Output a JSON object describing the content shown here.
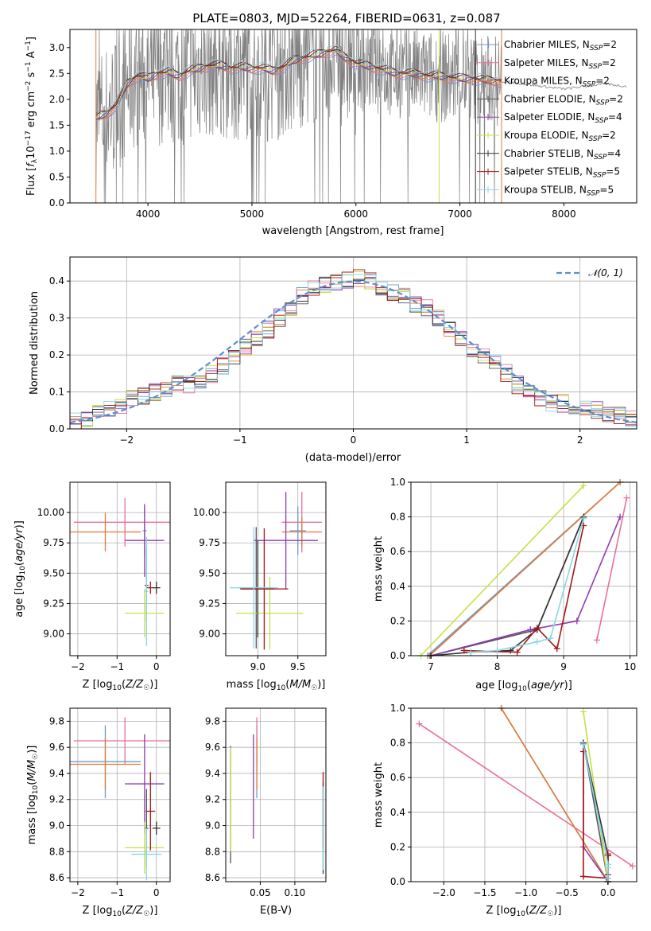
{
  "figure": {
    "title": "PLATE=0803, MJD=52264, FIBERID=0631, z=0.087"
  },
  "colors": {
    "Chabrier MILES": "#6b9bd1",
    "Salpeter MILES": "#e8709a",
    "Kroupa MILES": "#e07b39",
    "Chabrier ELODIE": "#555555",
    "Salpeter ELODIE": "#8e3bb0",
    "Kroupa ELODIE": "#c6e04a",
    "Chabrier STELIB": "#333333",
    "Salpeter STELIB": "#a81414",
    "Kroupa STELIB": "#85d8e6",
    "data": "#808080",
    "normal": "#5b8fd6"
  },
  "chart_data": [
    {
      "id": "spectrum",
      "type": "line",
      "title": "PLATE=0803, MJD=52264, FIBERID=0631, z=0.087",
      "xlabel": "wavelength [Angstrom, rest frame]",
      "ylabel": "Flux [f_λ 10^-17 erg cm^-2 s^-1 A^-1]",
      "xlim": [
        3250,
        8700
      ],
      "ylim": [
        0,
        3.35
      ],
      "xticks": [
        4000,
        5000,
        6000,
        7000,
        8000
      ],
      "yticks": [
        0.0,
        0.5,
        1.0,
        1.5,
        2.0,
        2.5,
        3.0
      ],
      "legend_position": "right",
      "legend": [
        "Chabrier MILES, N_SSP=2",
        "Salpeter MILES, N_SSP=2",
        "Kroupa MILES, N_SSP=2",
        "Chabrier ELODIE, N_SSP=2",
        "Salpeter ELODIE, N_SSP=4",
        "Kroupa ELODIE, N_SSP=2",
        "Chabrier STELIB, N_SSP=4",
        "Salpeter STELIB, N_SSP=5",
        "Kroupa STELIB, N_SSP=5"
      ],
      "model_x": [
        3500,
        3600,
        3700,
        3800,
        3900,
        4000,
        4100,
        4200,
        4300,
        4400,
        4500,
        4600,
        4700,
        4800,
        4900,
        5000,
        5100,
        5200,
        5300,
        5400,
        5500,
        5600,
        5700,
        5800,
        5900,
        6000,
        6100,
        6200,
        6300,
        6400,
        6500,
        6600,
        6700,
        6800,
        6900,
        7000,
        7100,
        7200,
        7300,
        7400
      ],
      "model_y": [
        1.65,
        1.72,
        1.9,
        2.3,
        2.45,
        2.4,
        2.5,
        2.52,
        2.45,
        2.55,
        2.6,
        2.65,
        2.65,
        2.6,
        2.62,
        2.6,
        2.6,
        2.55,
        2.62,
        2.75,
        2.8,
        2.85,
        2.9,
        2.95,
        2.8,
        2.7,
        2.65,
        2.6,
        2.55,
        2.5,
        2.5,
        2.48,
        2.45,
        2.45,
        2.42,
        2.4,
        2.4,
        2.38,
        2.36,
        2.35
      ],
      "extra_x": [
        7400,
        7600,
        7800,
        8000,
        8200,
        8400,
        8600
      ],
      "extra_y": [
        2.35,
        2.3,
        2.25,
        2.2,
        2.25,
        2.3,
        2.25
      ]
    },
    {
      "id": "residuals",
      "type": "line",
      "xlabel": "(data-model)/error",
      "ylabel": "Normed distribution",
      "xlim": [
        -2.5,
        2.5
      ],
      "ylim": [
        0,
        0.465
      ],
      "xticks": [
        -2,
        -1,
        0,
        1,
        2
      ],
      "yticks": [
        0.0,
        0.1,
        0.2,
        0.3,
        0.4
      ],
      "legend_position": "top-right",
      "legend": [
        "N(0,1)"
      ],
      "hist_bin_width": 0.1,
      "hist_start": -2.5,
      "hist_base": [
        0.02,
        0.03,
        0.04,
        0.05,
        0.06,
        0.08,
        0.09,
        0.1,
        0.11,
        0.12,
        0.12,
        0.13,
        0.15,
        0.17,
        0.19,
        0.22,
        0.24,
        0.27,
        0.3,
        0.33,
        0.36,
        0.38,
        0.39,
        0.4,
        0.4,
        0.41,
        0.4,
        0.38,
        0.37,
        0.36,
        0.34,
        0.33,
        0.3,
        0.27,
        0.24,
        0.22,
        0.2,
        0.18,
        0.15,
        0.12,
        0.1,
        0.08,
        0.07,
        0.07,
        0.06,
        0.06,
        0.05,
        0.04,
        0.035,
        0.03
      ]
    },
    {
      "id": "age-vs-Z",
      "type": "scatter",
      "xlabel": "Z [log10(Z/Z☉)]",
      "ylabel": "age [log10(age/yr)]",
      "xlim": [
        -2.2,
        0.35
      ],
      "ylim": [
        8.82,
        10.25
      ],
      "xticks": [
        -2,
        -1,
        0
      ],
      "yticks": [
        9.0,
        9.25,
        9.5,
        9.75,
        10.0
      ],
      "points": [
        {
          "series": "Chabrier MILES",
          "x": -0.3,
          "y": 9.85,
          "xerr": 0.05,
          "yerr": 0.2
        },
        {
          "series": "Salpeter MILES",
          "x": -0.8,
          "y": 9.92,
          "xerr": 1.3,
          "yerr": 0.2
        },
        {
          "series": "Kroupa MILES",
          "x": -1.3,
          "y": 9.84,
          "xerr": 0.9,
          "yerr": 0.16
        },
        {
          "series": "Chabrier ELODIE",
          "x": -0.25,
          "y": 9.4,
          "xerr": 0.05,
          "yerr": 0.3
        },
        {
          "series": "Salpeter ELODIE",
          "x": -0.3,
          "y": 9.77,
          "xerr": 0.5,
          "yerr": 0.3
        },
        {
          "series": "Kroupa ELODIE",
          "x": -0.3,
          "y": 9.17,
          "xerr": 0.5,
          "yerr": 0.2
        },
        {
          "series": "Chabrier STELIB",
          "x": 0.0,
          "y": 9.38,
          "xerr": 0.1,
          "yerr": 0.05
        },
        {
          "series": "Salpeter STELIB",
          "x": -0.15,
          "y": 9.38,
          "xerr": 0.12,
          "yerr": 0.05
        },
        {
          "series": "Kroupa STELIB",
          "x": -0.25,
          "y": 9.35,
          "xerr": 0.05,
          "yerr": 0.45
        }
      ]
    },
    {
      "id": "age-vs-mass",
      "type": "scatter",
      "xlabel": "mass [log10(M/M☉)]",
      "ylabel": "",
      "xlim": [
        8.6,
        9.85
      ],
      "ylim": [
        8.82,
        10.25
      ],
      "xticks": [
        9.0,
        9.5
      ],
      "yticks": [
        9.0,
        9.25,
        9.5,
        9.75,
        10.0
      ],
      "points": [
        {
          "series": "Chabrier MILES",
          "x": 9.5,
          "y": 9.85,
          "xerr": 0.1,
          "yerr": 0.2
        },
        {
          "series": "Salpeter MILES",
          "x": 9.55,
          "y": 9.92,
          "xerr": 0.25,
          "yerr": 0.25
        },
        {
          "series": "Kroupa MILES",
          "x": 9.55,
          "y": 9.84,
          "xerr": 0.25,
          "yerr": 0.12
        },
        {
          "series": "Chabrier ELODIE",
          "x": 8.98,
          "y": 9.38,
          "xerr": 0.22,
          "yerr": 0.5
        },
        {
          "series": "Salpeter ELODIE",
          "x": 9.35,
          "y": 9.77,
          "xerr": 0.4,
          "yerr": 0.4
        },
        {
          "series": "Kroupa ELODIE",
          "x": 9.15,
          "y": 9.17,
          "xerr": 0.42,
          "yerr": 0.3
        },
        {
          "series": "Chabrier STELIB",
          "x": 9.0,
          "y": 9.37,
          "xerr": 0.2,
          "yerr": 0.4
        },
        {
          "series": "Salpeter STELIB",
          "x": 9.08,
          "y": 9.37,
          "xerr": 0.3,
          "yerr": 0.5
        },
        {
          "series": "Kroupa STELIB",
          "x": 8.95,
          "y": 9.38,
          "xerr": 0.3,
          "yerr": 0.5
        }
      ]
    },
    {
      "id": "weight-vs-age",
      "type": "line",
      "xlabel": "age [log10(age/yr)]",
      "ylabel": "mass weight",
      "xlim": [
        6.7,
        10.1
      ],
      "ylim": [
        0,
        1.0
      ],
      "xticks": [
        7,
        8,
        9,
        10
      ],
      "yticks": [
        0.0,
        0.2,
        0.4,
        0.6,
        0.8,
        1.0
      ],
      "series": [
        {
          "name": "Chabrier MILES",
          "x": [
            6.95,
            9.85
          ],
          "y": [
            0.0,
            1.0
          ]
        },
        {
          "name": "Salpeter MILES",
          "x": [
            9.5,
            9.95
          ],
          "y": [
            0.09,
            0.91
          ]
        },
        {
          "name": "Kroupa MILES",
          "x": [
            6.98,
            9.85
          ],
          "y": [
            0.0,
            1.0
          ]
        },
        {
          "name": "Chabrier ELODIE",
          "x": [
            7.0,
            8.6,
            9.3
          ],
          "y": [
            0.0,
            0.15,
            0.8
          ]
        },
        {
          "name": "Salpeter ELODIE",
          "x": [
            7.0,
            8.5,
            9.2,
            9.85
          ],
          "y": [
            0.0,
            0.15,
            0.2,
            0.8
          ]
        },
        {
          "name": "Kroupa ELODIE",
          "x": [
            6.85,
            9.3
          ],
          "y": [
            0.0,
            0.98
          ]
        },
        {
          "name": "Chabrier STELIB",
          "x": [
            7.0,
            7.6,
            8.2,
            8.6,
            9.3
          ],
          "y": [
            0.0,
            0.02,
            0.03,
            0.15,
            0.8
          ]
        },
        {
          "name": "Salpeter STELIB",
          "x": [
            7.5,
            8.3,
            8.6,
            8.9,
            9.3
          ],
          "y": [
            0.03,
            0.02,
            0.16,
            0.04,
            0.75
          ]
        },
        {
          "name": "Kroupa STELIB",
          "x": [
            7.6,
            8.0,
            8.6,
            8.8,
            9.3
          ],
          "y": [
            0.02,
            0.03,
            0.08,
            0.1,
            0.79
          ]
        }
      ]
    },
    {
      "id": "mass-vs-Z",
      "type": "scatter",
      "xlabel": "Z [log10(Z/Z☉)]",
      "ylabel": "mass [log10(M/M☉)]",
      "xlim": [
        -2.2,
        0.35
      ],
      "ylim": [
        8.57,
        9.9
      ],
      "xticks": [
        -2,
        -1,
        0
      ],
      "yticks": [
        8.6,
        8.8,
        9.0,
        9.2,
        9.4,
        9.6,
        9.8
      ],
      "points": [
        {
          "series": "Chabrier MILES",
          "x": -1.3,
          "y": 9.49,
          "xerr": 0.9,
          "yerr": 0.28
        },
        {
          "series": "Salpeter MILES",
          "x": -0.8,
          "y": 9.65,
          "xerr": 1.3,
          "yerr": 0.18
        },
        {
          "series": "Kroupa MILES",
          "x": -1.3,
          "y": 9.47,
          "xerr": 0.9,
          "yerr": 0.2
        },
        {
          "series": "Chabrier ELODIE",
          "x": -0.25,
          "y": 8.98,
          "xerr": 0.05,
          "yerr": 0.3
        },
        {
          "series": "Salpeter ELODIE",
          "x": -0.3,
          "y": 9.32,
          "xerr": 0.5,
          "yerr": 0.38
        },
        {
          "series": "Kroupa ELODIE",
          "x": -0.3,
          "y": 8.83,
          "xerr": 0.5,
          "yerr": 0.2
        },
        {
          "series": "Chabrier STELIB",
          "x": 0.0,
          "y": 8.98,
          "xerr": 0.1,
          "yerr": 0.05
        },
        {
          "series": "Salpeter STELIB",
          "x": -0.15,
          "y": 9.11,
          "xerr": 0.12,
          "yerr": 0.3
        },
        {
          "series": "Kroupa STELIB",
          "x": -0.25,
          "y": 8.78,
          "xerr": 0.38,
          "yerr": 0.2
        }
      ]
    },
    {
      "id": "mass-vs-ebv",
      "type": "scatter",
      "xlabel": "E(B-V)",
      "ylabel": "",
      "xlim": [
        0.0,
        0.145
      ],
      "ylim": [
        8.57,
        9.9
      ],
      "xticks": [
        0.05,
        0.1
      ],
      "yticks": [
        8.6,
        8.8,
        9.0,
        9.2,
        9.4,
        9.6,
        9.8
      ],
      "points": [
        {
          "series": "Chabrier MILES",
          "x": 0.045,
          "y": 9.49,
          "xerr": 0.0,
          "yerr": 0.28
        },
        {
          "series": "Salpeter MILES",
          "x": 0.045,
          "y": 9.65,
          "xerr": 0.0,
          "yerr": 0.18
        },
        {
          "series": "Kroupa MILES",
          "x": 0.045,
          "y": 9.47,
          "xerr": 0.0,
          "yerr": 0.2
        },
        {
          "series": "Chabrier ELODIE",
          "x": 0.007,
          "y": 9.16,
          "xerr": 0.0,
          "yerr": 0.45
        },
        {
          "series": "Salpeter ELODIE",
          "x": 0.04,
          "y": 9.3,
          "xerr": 0.0,
          "yerr": 0.4
        },
        {
          "series": "Kroupa ELODIE",
          "x": 0.007,
          "y": 9.2,
          "xerr": 0.0,
          "yerr": 0.4
        },
        {
          "series": "Chabrier STELIB",
          "x": 0.141,
          "y": 8.98,
          "xerr": 0.0,
          "yerr": 0.35
        },
        {
          "series": "Salpeter STELIB",
          "x": 0.141,
          "y": 9.11,
          "xerr": 0.0,
          "yerr": 0.3
        },
        {
          "series": "Kroupa STELIB",
          "x": 0.141,
          "y": 8.98,
          "xerr": 0.0,
          "yerr": 0.32
        }
      ]
    },
    {
      "id": "weight-vs-Z",
      "type": "line",
      "xlabel": "Z [log10(Z/Z☉)]",
      "ylabel": "mass weight",
      "xlim": [
        -2.4,
        0.35
      ],
      "ylim": [
        0,
        1.0
      ],
      "xticks": [
        -2.0,
        -1.5,
        -1.0,
        -0.5,
        0.0
      ],
      "yticks": [
        0.0,
        0.2,
        0.4,
        0.6,
        0.8,
        1.0
      ],
      "series": [
        {
          "name": "Chabrier MILES",
          "x": [
            -1.3,
            0.0
          ],
          "y": [
            1.0,
            0.0
          ]
        },
        {
          "name": "Salpeter MILES",
          "x": [
            -2.3,
            0.3
          ],
          "y": [
            0.91,
            0.09
          ]
        },
        {
          "name": "Kroupa MILES",
          "x": [
            -1.3,
            0.0
          ],
          "y": [
            1.0,
            0.0
          ]
        },
        {
          "name": "Chabrier ELODIE",
          "x": [
            -0.3,
            0.0
          ],
          "y": [
            0.8,
            0.0
          ]
        },
        {
          "name": "Salpeter ELODIE",
          "x": [
            -0.3,
            -0.3,
            0.0,
            0.0
          ],
          "y": [
            0.8,
            0.2,
            0.0,
            0.15
          ]
        },
        {
          "name": "Kroupa ELODIE",
          "x": [
            -0.3,
            0.0
          ],
          "y": [
            0.98,
            0.0
          ]
        },
        {
          "name": "Chabrier STELIB",
          "x": [
            -0.3,
            0.0,
            0.0
          ],
          "y": [
            0.8,
            0.15,
            0.0
          ]
        },
        {
          "name": "Salpeter STELIB",
          "x": [
            -0.3,
            -0.3,
            0.0,
            0.0,
            0.0
          ],
          "y": [
            0.75,
            0.03,
            0.02,
            0.16,
            0.04
          ]
        },
        {
          "name": "Kroupa STELIB",
          "x": [
            -0.3,
            0.0,
            0.0,
            0.0
          ],
          "y": [
            0.79,
            0.1,
            0.08,
            0.02
          ]
        }
      ]
    }
  ]
}
